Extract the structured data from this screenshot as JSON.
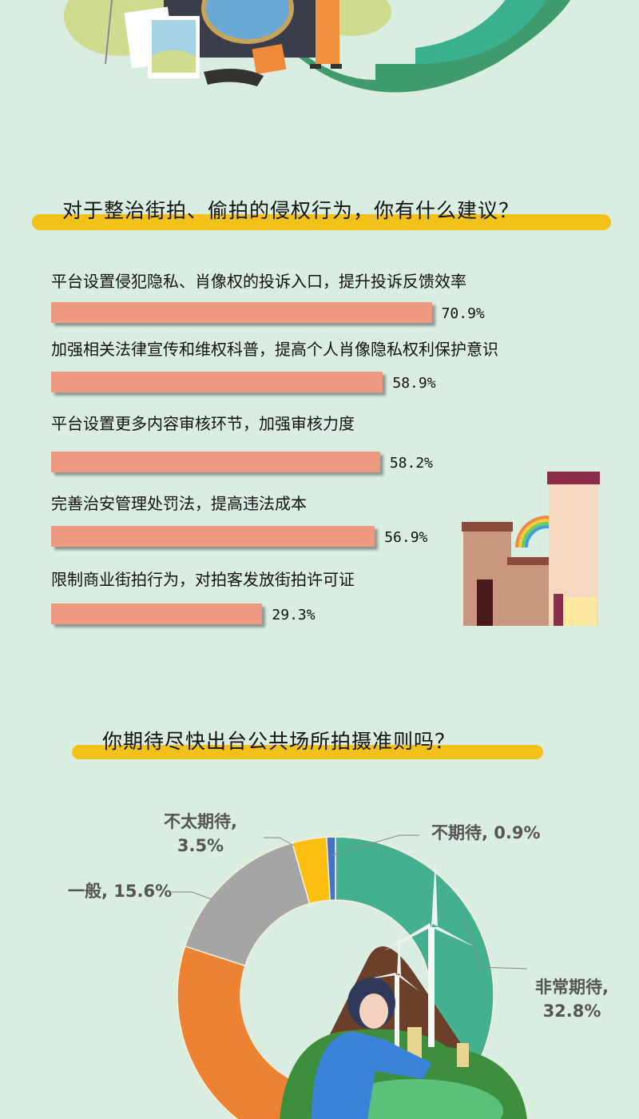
{
  "section1": {
    "title": "对于整治街拍、偷拍的侵权行为，你有什么建议？"
  },
  "section2": {
    "title": "你期待尽快出台公共场所拍摄准则吗？"
  },
  "chart_data": [
    {
      "type": "bar",
      "orientation": "horizontal",
      "title": "对于整治街拍、偷拍的侵权行为，你有什么建议？",
      "categories": [
        "平台设置侵犯隐私、肖像权的投诉入口，提升投诉反馈效率",
        "加强相关法律宣传和维权科普，提高个人肖像隐私权利保护意识",
        "平台设置更多内容审核环节，加强审核力度",
        "完善治安管理处罚法，提高违法成本",
        "限制商业街拍行为，对拍客发放街拍许可证"
      ],
      "values": [
        70.9,
        58.9,
        58.2,
        56.9,
        29.3
      ],
      "value_labels": [
        "70.9%",
        "58.9%",
        "58.2%",
        "56.9%",
        "29.3%"
      ],
      "bar_color": "#ee9a80"
    },
    {
      "type": "pie",
      "variant": "donut",
      "title": "你期待尽快出台公共场所拍摄准则吗？",
      "slices": [
        {
          "label": "非常期待",
          "value": 32.8,
          "text": "32.8%",
          "color": "#45b08f"
        },
        {
          "label": "",
          "value": 47.2,
          "text": "",
          "color": "#ee8233"
        },
        {
          "label": "一般",
          "value": 15.6,
          "text": "15.6%",
          "color": "#a5a5a5"
        },
        {
          "label": "不太期待",
          "value": 3.5,
          "text": "3.5%",
          "color": "#fbbf10"
        },
        {
          "label": "不期待",
          "value": 0.9,
          "text": "0.9%",
          "color": "#4472c4"
        }
      ]
    }
  ]
}
